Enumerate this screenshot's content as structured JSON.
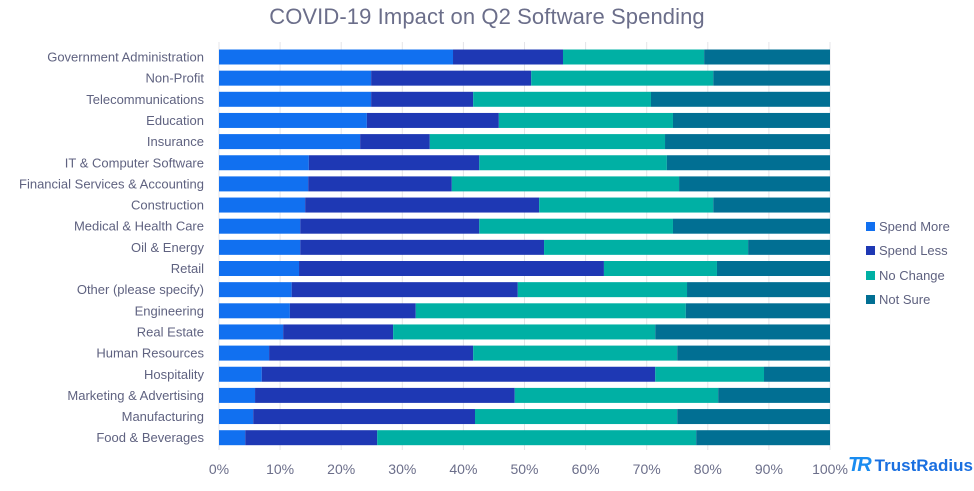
{
  "chart_data": {
    "type": "bar",
    "orientation": "horizontal",
    "stacked": true,
    "title": "COVID-19 Impact on Q2 Software Spending",
    "xlabel": "",
    "ylabel": "",
    "xlim": [
      0,
      100
    ],
    "x_ticks": [
      "0%",
      "10%",
      "20%",
      "30%",
      "40%",
      "50%",
      "60%",
      "70%",
      "80%",
      "90%",
      "100%"
    ],
    "grid": true,
    "legend_position": "right",
    "categories": [
      "Government Administration",
      "Non-Profit",
      "Telecommunications",
      "Education",
      "Insurance",
      "IT & Computer Software",
      "Financial Services & Accounting",
      "Construction",
      "Medical & Health Care",
      "Oil & Energy",
      "Retail",
      "Other (please specify)",
      "Engineering",
      "Real Estate",
      "Human Resources",
      "Hospitality",
      "Marketing & Advertising",
      "Manufacturing",
      "Food & Beverages"
    ],
    "series": [
      {
        "name": "Spend More",
        "color": "#1170f0",
        "values": [
          38.3,
          24.9,
          24.9,
          24.2,
          23.1,
          14.7,
          14.6,
          14.1,
          13.3,
          13.3,
          13.1,
          11.9,
          11.6,
          10.5,
          8.2,
          7.0,
          5.9,
          5.6,
          4.3
        ]
      },
      {
        "name": "Spend Less",
        "color": "#1e38b4",
        "values": [
          18.0,
          26.2,
          16.7,
          21.6,
          11.4,
          27.9,
          23.5,
          38.3,
          29.3,
          39.9,
          49.9,
          37.0,
          20.6,
          18.0,
          33.4,
          64.4,
          42.5,
          36.3,
          21.6
        ]
      },
      {
        "name": "No Change",
        "color": "#00b0a4",
        "values": [
          23.1,
          29.8,
          29.1,
          28.5,
          38.5,
          30.7,
          37.2,
          28.5,
          31.7,
          33.4,
          18.5,
          27.7,
          44.2,
          42.9,
          33.4,
          17.8,
          33.3,
          33.1,
          52.2
        ]
      },
      {
        "name": "Not Sure",
        "color": "#016f93",
        "values": [
          20.6,
          19.1,
          29.3,
          25.7,
          27.0,
          26.7,
          24.7,
          19.1,
          25.7,
          13.4,
          18.5,
          23.4,
          23.6,
          28.6,
          25.0,
          10.8,
          18.3,
          25.0,
          21.9
        ]
      }
    ]
  },
  "branding": {
    "logo_mark": "TR",
    "logo_text": "TrustRadius"
  }
}
